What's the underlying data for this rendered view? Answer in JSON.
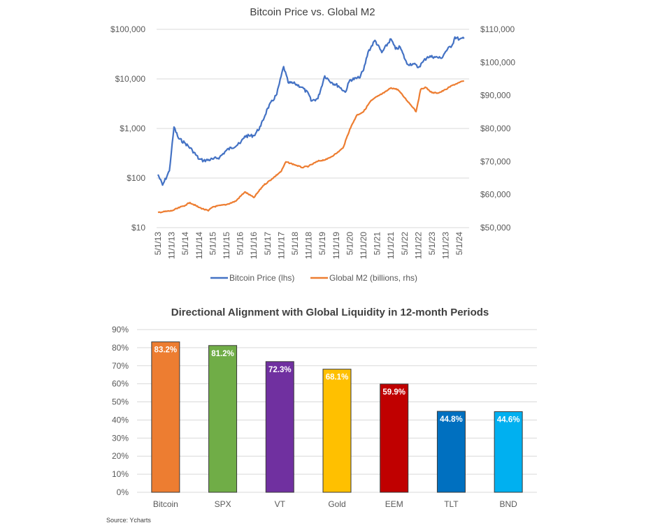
{
  "chart_data": [
    {
      "type": "line",
      "title": "Bitcoin Price vs. Global M2",
      "x_tick_labels": [
        "5/1/13",
        "11/1/13",
        "5/1/14",
        "11/1/14",
        "5/1/15",
        "11/1/15",
        "5/1/16",
        "11/1/16",
        "5/1/17",
        "11/1/17",
        "5/1/18",
        "11/1/18",
        "5/1/19",
        "11/1/19",
        "5/1/20",
        "11/1/20",
        "5/1/21",
        "11/1/21",
        "5/1/22",
        "11/1/22",
        "5/1/23",
        "11/1/23",
        "5/1/24"
      ],
      "left_axis": {
        "scale": "log",
        "range": [
          10,
          100000
        ],
        "tick_labels": [
          "$100,000",
          "$10,000",
          "$1,000",
          "$100",
          "$10"
        ],
        "tick_values": [
          100000,
          10000,
          1000,
          100,
          10
        ]
      },
      "right_axis": {
        "scale": "linear",
        "range": [
          50000,
          110000
        ],
        "tick_labels": [
          "$110,000",
          "$100,000",
          "$90,000",
          "$80,000",
          "$70,000",
          "$60,000",
          "$50,000"
        ],
        "tick_values": [
          110000,
          100000,
          90000,
          80000,
          70000,
          60000,
          50000
        ]
      },
      "grid": true,
      "legend_position": "bottom",
      "series": [
        {
          "name": "Bitcoin Price (lhs)",
          "axis": "left",
          "color": "#4472C4",
          "x": [
            "2013-05",
            "2013-07",
            "2013-10",
            "2013-12",
            "2014-02",
            "2014-05",
            "2014-08",
            "2014-11",
            "2015-01",
            "2015-05",
            "2015-08",
            "2015-11",
            "2016-05",
            "2016-07",
            "2016-11",
            "2017-02",
            "2017-05",
            "2017-09",
            "2017-12",
            "2018-02",
            "2018-05",
            "2018-08",
            "2018-11",
            "2018-12",
            "2019-03",
            "2019-06",
            "2019-09",
            "2019-12",
            "2020-03",
            "2020-05",
            "2020-09",
            "2020-11",
            "2021-01",
            "2021-04",
            "2021-07",
            "2021-11",
            "2022-01",
            "2022-03",
            "2022-06",
            "2022-09",
            "2022-11",
            "2023-01",
            "2023-03",
            "2023-06",
            "2023-09",
            "2023-11",
            "2024-02",
            "2024-03",
            "2024-05",
            "2024-07"
          ],
          "values": [
            118,
            72,
            140,
            1070,
            630,
            500,
            365,
            240,
            225,
            240,
            263,
            365,
            500,
            700,
            720,
            1120,
            2560,
            4900,
            17700,
            8400,
            8000,
            6800,
            4900,
            3600,
            4000,
            11500,
            8500,
            7200,
            5400,
            9500,
            10500,
            15000,
            35000,
            60000,
            34000,
            64000,
            40000,
            44000,
            20000,
            20000,
            17000,
            22000,
            28000,
            28000,
            26000,
            36000,
            50000,
            70000,
            63000,
            65000
          ]
        },
        {
          "name": "Global M2 (billions, rhs)",
          "axis": "right",
          "color": "#ED7D31",
          "x": [
            "2013-05",
            "2013-11",
            "2014-05",
            "2014-07",
            "2014-11",
            "2015-03",
            "2015-05",
            "2015-11",
            "2016-03",
            "2016-07",
            "2016-11",
            "2017-03",
            "2017-07",
            "2017-11",
            "2018-01",
            "2018-05",
            "2018-08",
            "2018-11",
            "2019-03",
            "2019-07",
            "2019-11",
            "2020-02",
            "2020-05",
            "2020-08",
            "2020-11",
            "2021-02",
            "2021-05",
            "2021-08",
            "2021-11",
            "2022-02",
            "2022-05",
            "2022-09",
            "2022-10",
            "2022-12",
            "2023-02",
            "2023-05",
            "2023-08",
            "2023-11",
            "2024-02",
            "2024-05",
            "2024-07"
          ],
          "values": [
            54600,
            55100,
            56800,
            57600,
            56100,
            55100,
            56300,
            57000,
            58000,
            60800,
            59100,
            62700,
            64800,
            67100,
            69900,
            69000,
            68200,
            68600,
            70100,
            70700,
            72400,
            74100,
            79800,
            84000,
            85100,
            88200,
            89700,
            90800,
            92300,
            91800,
            89300,
            86100,
            85100,
            91800,
            92500,
            90800,
            90800,
            91800,
            93100,
            93900,
            94400
          ]
        }
      ]
    },
    {
      "type": "bar",
      "title": "Directional Alignment with Global Liquidity in 12-month Periods",
      "categories": [
        "Bitcoin",
        "SPX",
        "VT",
        "Gold",
        "EEM",
        "TLT",
        "BND"
      ],
      "values": [
        83.2,
        81.2,
        72.3,
        68.1,
        59.9,
        44.8,
        44.6
      ],
      "data_labels": [
        "83.2%",
        "81.2%",
        "72.3%",
        "68.1%",
        "59.9%",
        "44.8%",
        "44.6%"
      ],
      "colors": [
        "#ED7D31",
        "#70AD47",
        "#7030A0",
        "#FFC000",
        "#C00000",
        "#0070C0",
        "#00B0F0"
      ],
      "ylim": [
        0,
        90
      ],
      "y_tick_labels": [
        "90%",
        "80%",
        "70%",
        "60%",
        "50%",
        "40%",
        "30%",
        "20%",
        "10%",
        "0%"
      ],
      "y_tick_values": [
        90,
        80,
        70,
        60,
        50,
        40,
        30,
        20,
        10,
        0
      ],
      "grid": true,
      "xlabel": "",
      "ylabel": ""
    }
  ],
  "source_note": "Source: Ycharts"
}
